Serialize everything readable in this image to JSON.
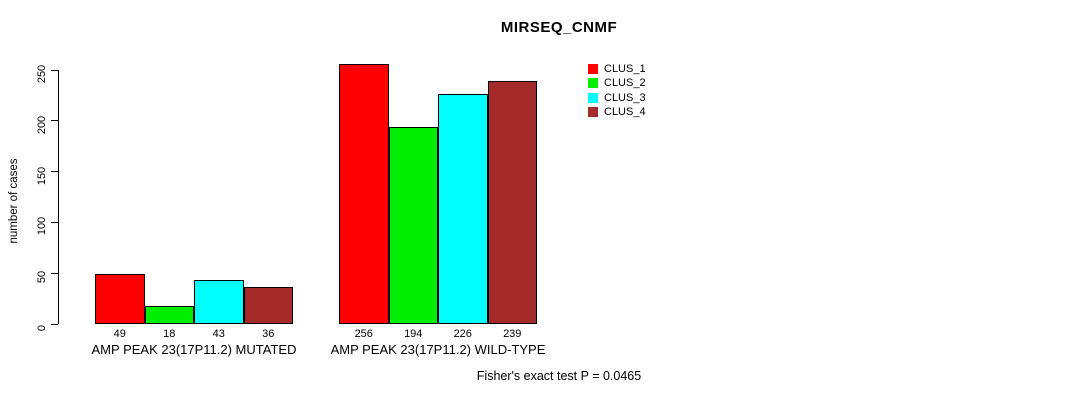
{
  "chart_data": {
    "type": "bar",
    "title": "MIRSEQ_CNMF",
    "ylabel": "number of cases",
    "xlabel": "",
    "ylim": [
      0,
      250
    ],
    "yticks": [
      0,
      50,
      100,
      150,
      200,
      250
    ],
    "grid": false,
    "legend_position": "right",
    "bar_value_labels_shown": true,
    "categories": [
      "AMP PEAK 23(17P11.2) MUTATED",
      "AMP PEAK 23(17P11.2) WILD-TYPE"
    ],
    "series": [
      {
        "name": "CLUS_1",
        "color": "#ff0000",
        "values": [
          49,
          256
        ]
      },
      {
        "name": "CLUS_2",
        "color": "#00ee00",
        "values": [
          18,
          194
        ]
      },
      {
        "name": "CLUS_3",
        "color": "#00ffff",
        "values": [
          43,
          226
        ]
      },
      {
        "name": "CLUS_4",
        "color": "#a52a2a",
        "values": [
          36,
          239
        ]
      }
    ],
    "annotation": "Fisher's exact test P = 0.0465",
    "axis_color": "#000000",
    "bar_border_color": "#000000"
  }
}
